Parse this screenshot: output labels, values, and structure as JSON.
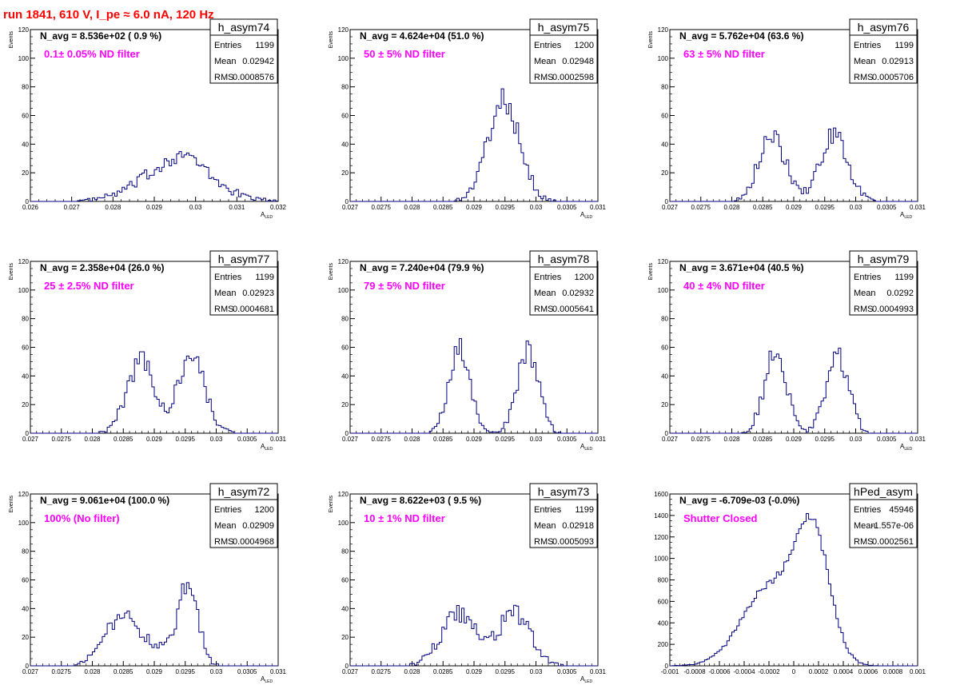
{
  "run_title": "run 1841,   610 V, I_pe ≈ 6.0 nA, 120 Hz",
  "colors": {
    "title": "#ff0000",
    "annotation": "#ff00ff",
    "histogram": "#000080",
    "frame": "#000000"
  },
  "chart_data": [
    {
      "type": "histogram",
      "name": "h_asym74",
      "title": "N_avg = 8.536e+02 ( 0.9 %)",
      "annotation": "0.1± 0.05% ND filter",
      "stats": {
        "Entries": "1199",
        "Mean": "0.02942",
        "RMS": "0.0008576"
      },
      "xlabel": "A_LED",
      "ylabel": "Events",
      "xlim": [
        0.026,
        0.032
      ],
      "ylim": [
        0,
        120
      ],
      "xticks": [
        "0.026",
        "0.027",
        "0.028",
        "0.029",
        "0.03",
        "0.031",
        "0.032"
      ],
      "yticks": [
        "0",
        "20",
        "40",
        "60",
        "80",
        "100",
        "120"
      ],
      "peaks": [
        {
          "center": 0.02955,
          "sigma": 0.00085,
          "amp": 25
        },
        {
          "center": 0.0297,
          "sigma": 0.0004,
          "amp": 8
        }
      ]
    },
    {
      "type": "histogram",
      "name": "h_asym75",
      "title": "N_avg = 4.624e+04 (51.0 %)",
      "annotation": "50 ± 5% ND filter",
      "stats": {
        "Entries": "1200",
        "Mean": "0.02948",
        "RMS": "0.0002598"
      },
      "xlabel": "A_LED",
      "ylabel": "Events",
      "xlim": [
        0.027,
        0.031
      ],
      "ylim": [
        0,
        120
      ],
      "xticks": [
        "0.027",
        "0.0275",
        "0.028",
        "0.0285",
        "0.029",
        "0.0295",
        "0.03",
        "0.0305",
        "0.031"
      ],
      "yticks": [
        "0",
        "20",
        "40",
        "60",
        "80",
        "100",
        "120"
      ],
      "peaks": [
        {
          "center": 0.02948,
          "sigma": 0.00026,
          "amp": 70
        }
      ]
    },
    {
      "type": "histogram",
      "name": "h_asym76",
      "title": "N_avg = 5.762e+04 (63.6 %)",
      "annotation": "63 ± 5% ND filter",
      "stats": {
        "Entries": "1199",
        "Mean": "0.02913",
        "RMS": "0.0005706"
      },
      "xlabel": "A_LED",
      "ylabel": "Events",
      "xlim": [
        0.027,
        0.031
      ],
      "ylim": [
        0,
        120
      ],
      "xticks": [
        "0.027",
        "0.0275",
        "0.028",
        "0.0285",
        "0.029",
        "0.0295",
        "0.03",
        "0.0305",
        "0.031"
      ],
      "yticks": [
        "0",
        "20",
        "40",
        "60",
        "80",
        "100",
        "120"
      ],
      "peaks": [
        {
          "center": 0.02865,
          "sigma": 0.00022,
          "amp": 46
        },
        {
          "center": 0.02965,
          "sigma": 0.00022,
          "amp": 46
        }
      ]
    },
    {
      "type": "histogram",
      "name": "h_asym77",
      "title": "N_avg = 2.358e+04 (26.0 %)",
      "annotation": "25 ± 2.5% ND filter",
      "stats": {
        "Entries": "1199",
        "Mean": "0.02923",
        "RMS": "0.0004681"
      },
      "xlabel": "A_LED",
      "ylabel": "Events",
      "xlim": [
        0.027,
        0.031
      ],
      "ylim": [
        0,
        120
      ],
      "xticks": [
        "0.027",
        "0.0275",
        "0.028",
        "0.0285",
        "0.029",
        "0.0295",
        "0.03",
        "0.0305",
        "0.031"
      ],
      "yticks": [
        "0",
        "20",
        "40",
        "60",
        "80",
        "100",
        "120"
      ],
      "peaks": [
        {
          "center": 0.02878,
          "sigma": 0.00022,
          "amp": 50
        },
        {
          "center": 0.0296,
          "sigma": 0.00022,
          "amp": 52
        }
      ]
    },
    {
      "type": "histogram",
      "name": "h_asym78",
      "title": "N_avg = 7.240e+04 (79.9 %)",
      "annotation": "79 ± 5% ND filter",
      "stats": {
        "Entries": "1200",
        "Mean": "0.02932",
        "RMS": "0.0005641"
      },
      "xlabel": "A_LED",
      "ylabel": "Events",
      "xlim": [
        0.027,
        0.031
      ],
      "ylim": [
        0,
        120
      ],
      "xticks": [
        "0.027",
        "0.0275",
        "0.028",
        "0.0285",
        "0.029",
        "0.0295",
        "0.03",
        "0.0305",
        "0.031"
      ],
      "yticks": [
        "0",
        "20",
        "40",
        "60",
        "80",
        "100",
        "120"
      ],
      "peaks": [
        {
          "center": 0.02877,
          "sigma": 0.00017,
          "amp": 58
        },
        {
          "center": 0.02987,
          "sigma": 0.00017,
          "amp": 58
        }
      ]
    },
    {
      "type": "histogram",
      "name": "h_asym79",
      "title": "N_avg = 3.671e+04 (40.5 %)",
      "annotation": "40 ± 4% ND filter",
      "stats": {
        "Entries": "1199",
        "Mean": "0.0292",
        "RMS": "0.0004993"
      },
      "xlabel": "A_LED",
      "ylabel": "Events",
      "xlim": [
        0.027,
        0.031
      ],
      "ylim": [
        0,
        120
      ],
      "xticks": [
        "0.027",
        "0.0275",
        "0.028",
        "0.0285",
        "0.029",
        "0.0295",
        "0.03",
        "0.0305",
        "0.031"
      ],
      "yticks": [
        "0",
        "20",
        "40",
        "60",
        "80",
        "100",
        "120"
      ],
      "peaks": [
        {
          "center": 0.0287,
          "sigma": 0.00018,
          "amp": 55
        },
        {
          "center": 0.0297,
          "sigma": 0.00018,
          "amp": 55
        }
      ]
    },
    {
      "type": "histogram",
      "name": "h_asym72",
      "title": "N_avg = 9.061e+04 (100.0 %)",
      "annotation": "100% (No filter)",
      "stats": {
        "Entries": "1200",
        "Mean": "0.02909",
        "RMS": "0.0004968"
      },
      "xlabel": "A_LED",
      "ylabel": "Events",
      "xlim": [
        0.027,
        0.031
      ],
      "ylim": [
        0,
        120
      ],
      "xticks": [
        "0.027",
        "0.0275",
        "0.028",
        "0.0285",
        "0.029",
        "0.0295",
        "0.03",
        "0.0305",
        "0.031"
      ],
      "yticks": [
        "0",
        "20",
        "40",
        "60",
        "80",
        "100",
        "120"
      ],
      "peaks": [
        {
          "center": 0.02848,
          "sigma": 0.00028,
          "amp": 33
        },
        {
          "center": 0.02955,
          "sigma": 0.00016,
          "amp": 55
        },
        {
          "center": 0.02905,
          "sigma": 0.00025,
          "amp": 10
        }
      ]
    },
    {
      "type": "histogram",
      "name": "h_asym73",
      "title": "N_avg = 8.622e+03 ( 9.5 %)",
      "annotation": "10 ± 1% ND filter",
      "stats": {
        "Entries": "1199",
        "Mean": "0.02918",
        "RMS": "0.0005093"
      },
      "xlabel": "A_LED",
      "ylabel": "Events",
      "xlim": [
        0.027,
        0.031
      ],
      "ylim": [
        0,
        120
      ],
      "xticks": [
        "0.027",
        "0.0275",
        "0.028",
        "0.0285",
        "0.029",
        "0.0295",
        "0.03",
        "0.0305",
        "0.031"
      ],
      "yticks": [
        "0",
        "20",
        "40",
        "60",
        "80",
        "100",
        "120"
      ],
      "peaks": [
        {
          "center": 0.02875,
          "sigma": 0.00028,
          "amp": 36
        },
        {
          "center": 0.02965,
          "sigma": 0.00026,
          "amp": 37
        }
      ]
    },
    {
      "type": "histogram",
      "name": "hPed_asym",
      "title": "N_avg = -6.709e-03 (-0.0%)",
      "annotation": "Shutter Closed",
      "stats": {
        "Entries": "45946",
        "Mean": "-1.557e-06",
        "RMS": "0.0002561"
      },
      "xlabel": "",
      "ylabel": "",
      "xlim": [
        -0.001,
        0.001
      ],
      "ylim": [
        0,
        1600
      ],
      "xticks": [
        "-0.001",
        "-0.0008",
        "-0.0006",
        "-0.0004",
        "-0.0002",
        "0",
        "0.0002",
        "0.0004",
        "0.0006",
        "0.0008",
        "0.001"
      ],
      "yticks": [
        "0",
        "200",
        "400",
        "600",
        "800",
        "1000",
        "1200",
        "1400",
        "1600"
      ],
      "peaks": [
        {
          "center": 0.00015,
          "sigma": 0.00014,
          "amp": 1180
        },
        {
          "center": -0.0002,
          "sigma": 0.00022,
          "amp": 720
        }
      ]
    }
  ]
}
